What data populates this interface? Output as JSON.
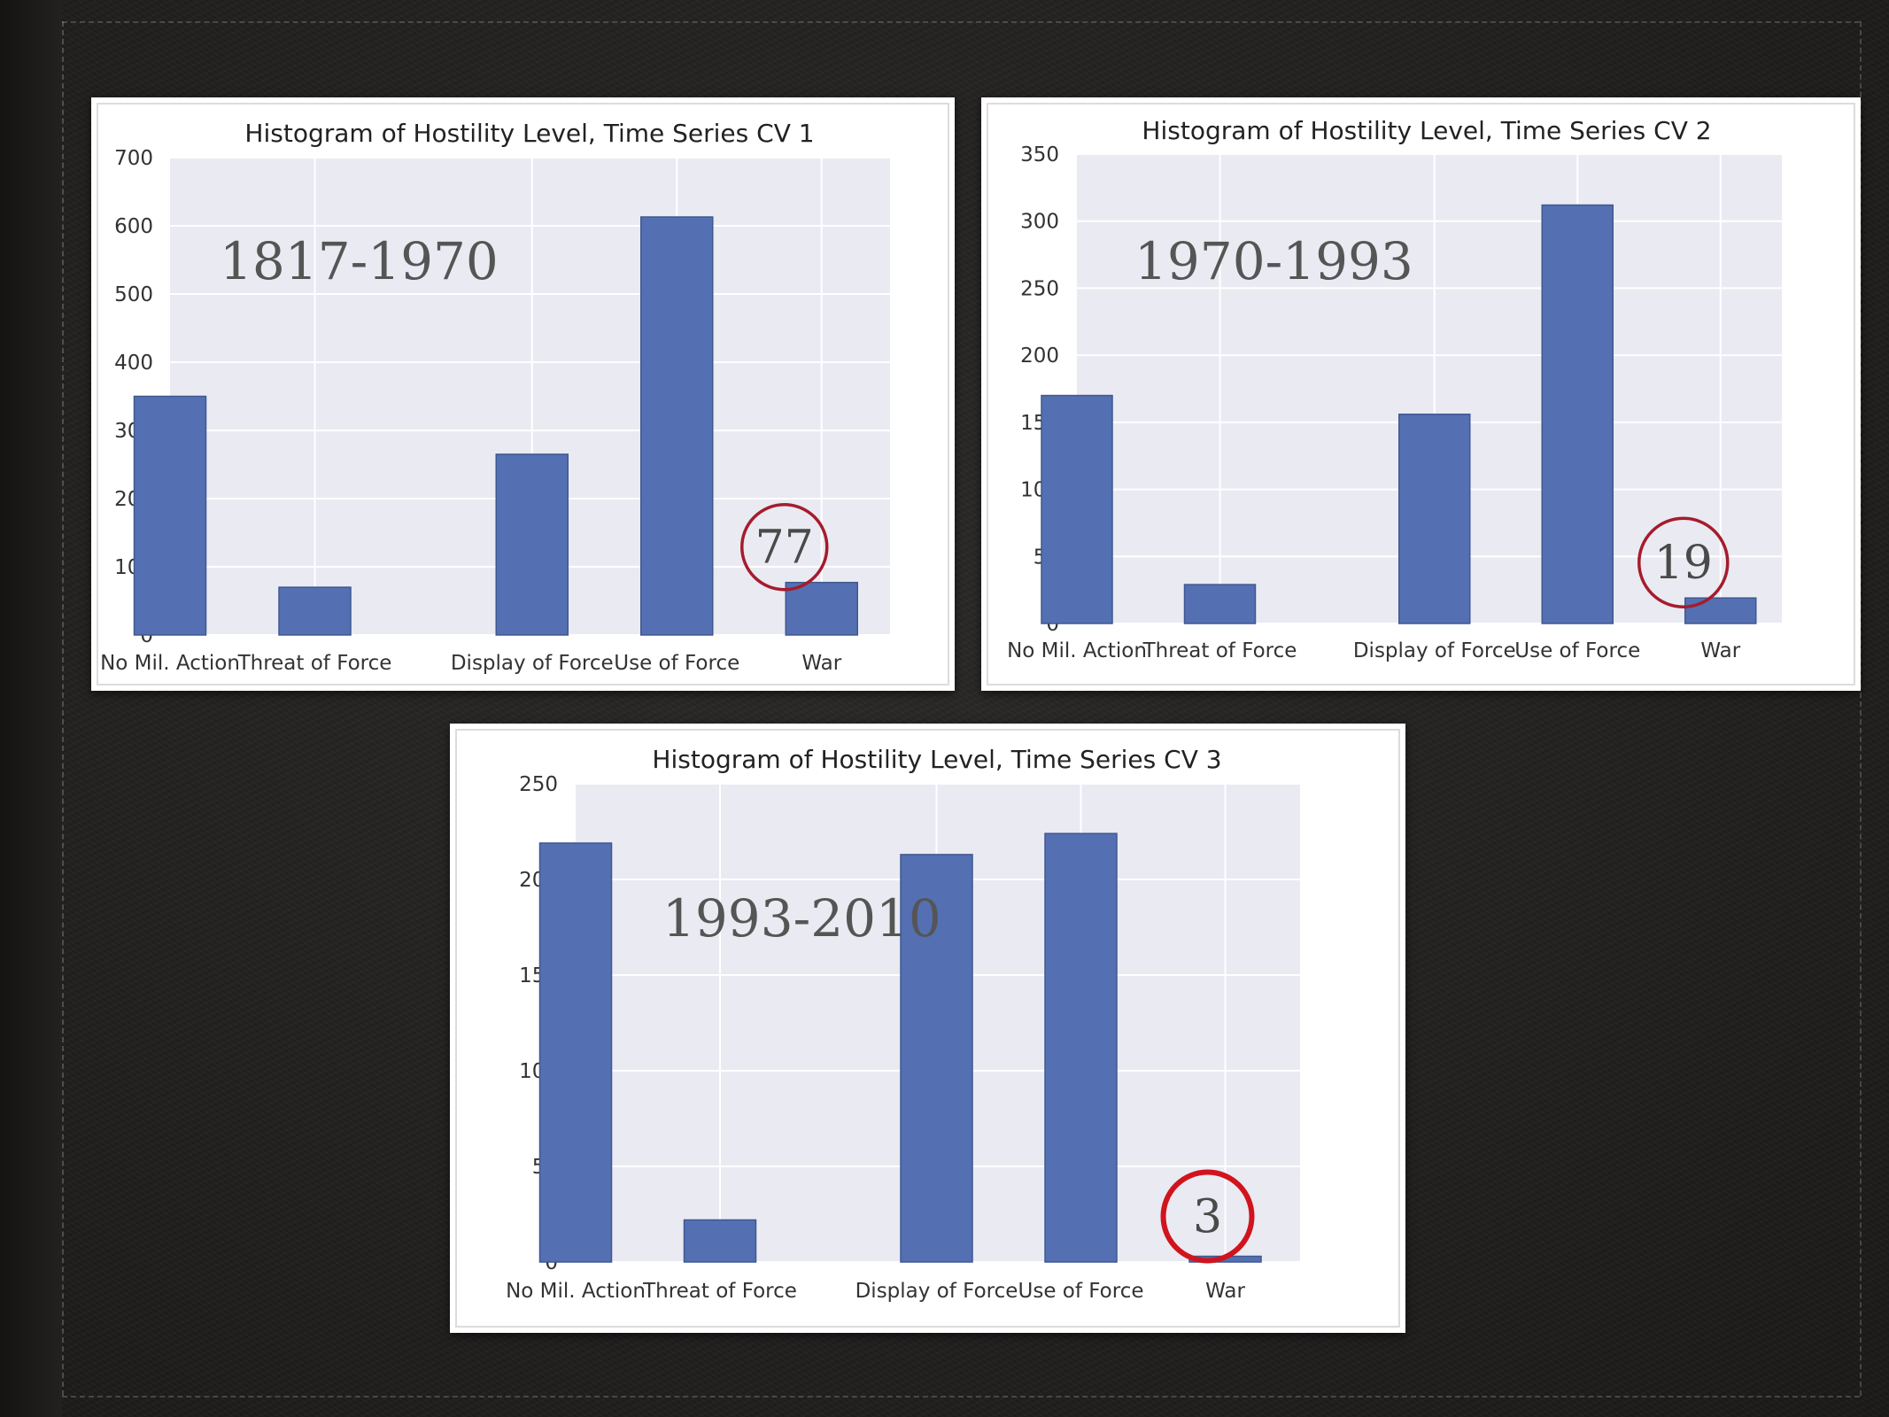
{
  "chart_data": [
    {
      "type": "bar",
      "title": "Histogram of Hostility Level, Time Series CV 1",
      "categories": [
        "No Mil. Action",
        "Threat of Force",
        "Display of Force",
        "Use of Force",
        "War"
      ],
      "category_positions": [
        0,
        1,
        2.5,
        3.5,
        4.5
      ],
      "values": [
        350,
        70,
        265,
        613,
        77
      ],
      "ylim": [
        0,
        700
      ],
      "yticks": [
        0,
        100,
        200,
        300,
        400,
        500,
        600,
        700
      ],
      "grid": true,
      "annotation": "1817-1970",
      "highlight": {
        "category": "War",
        "label": "77",
        "color": "#a51c2c"
      },
      "colors": {
        "bar": "#5470b3",
        "plot_bg": "#eaeaf2",
        "grid": "#ffffff"
      }
    },
    {
      "type": "bar",
      "title": "Histogram of Hostility Level, Time Series CV 2",
      "categories": [
        "No Mil. Action",
        "Threat of Force",
        "Display of Force",
        "Use of Force",
        "War"
      ],
      "category_positions": [
        0,
        1,
        2.5,
        3.5,
        4.5
      ],
      "values": [
        170,
        29,
        156,
        312,
        19
      ],
      "ylim": [
        0,
        350
      ],
      "yticks": [
        0,
        50,
        100,
        150,
        200,
        250,
        300,
        350
      ],
      "grid": true,
      "annotation": "1970-1993",
      "highlight": {
        "category": "War",
        "label": "19",
        "color": "#a51c2c"
      },
      "colors": {
        "bar": "#5470b3",
        "plot_bg": "#eaeaf2",
        "grid": "#ffffff"
      }
    },
    {
      "type": "bar",
      "title": "Histogram of Hostility Level, Time Series CV 3",
      "categories": [
        "No Mil. Action",
        "Threat of Force",
        "Display of Force",
        "Use of Force",
        "War"
      ],
      "category_positions": [
        0,
        1,
        2.5,
        3.5,
        4.5
      ],
      "values": [
        219,
        22,
        213,
        224,
        3
      ],
      "ylim": [
        0,
        250
      ],
      "yticks": [
        0,
        50,
        100,
        150,
        200,
        250
      ],
      "grid": true,
      "annotation": "1993-2010",
      "highlight": {
        "category": "War",
        "label": "3",
        "color": "#d0141e"
      },
      "colors": {
        "bar": "#5470b3",
        "plot_bg": "#eaeaf2",
        "grid": "#ffffff"
      }
    }
  ]
}
